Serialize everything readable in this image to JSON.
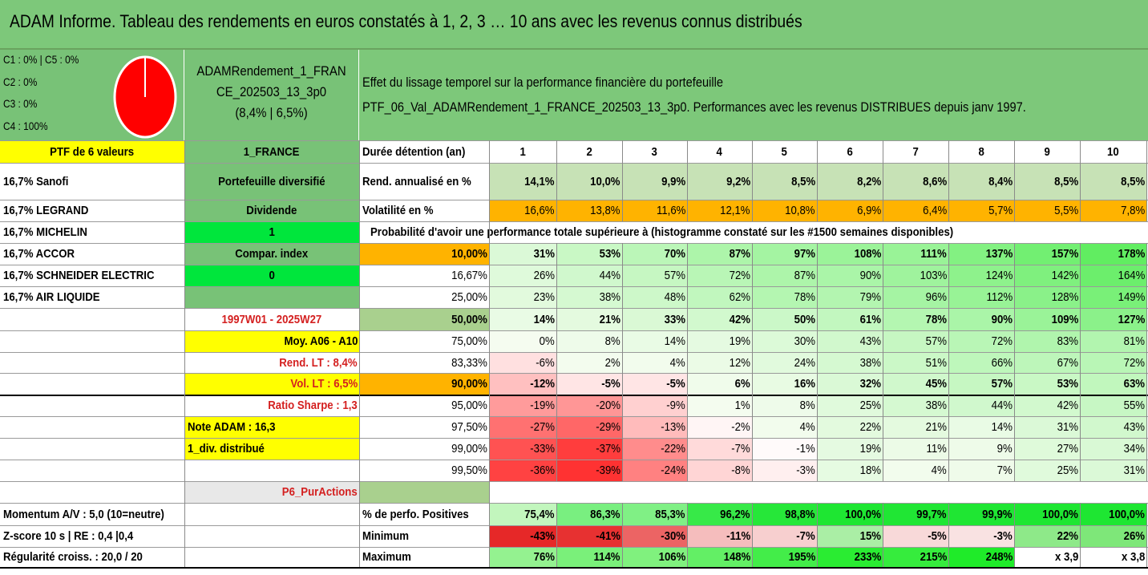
{
  "title": "ADAM Informe. Tableau des rendements en euros constatés à 1, 2, 3 … 10 ans avec les revenus connus distribués",
  "composition_lines": [
    "C1 : 0% | C5 : 0%",
    "C2 : 0%",
    "C3 : 0%",
    "C4 : 100%"
  ],
  "pie": {
    "color": "#ff0000",
    "share_c4": 100
  },
  "portfolio_name_lines": [
    "ADAMRendement_1_FRAN",
    "CE_202503_13_3p0",
    "(8,4% | 6,5%)"
  ],
  "description_lines": [
    "Effet du lissage temporel sur la performance financière du portefeuille",
    "PTF_06_Val_ADAMRendement_1_FRANCE_202503_13_3p0. Performances avec les revenus DISTRIBUES depuis janv 1997."
  ],
  "left_col": [
    "PTF de 6 valeurs",
    "16,7% Sanofi",
    "16,7% LEGRAND",
    "16,7% MICHELIN",
    "16,7% ACCOR",
    "16,7% SCHNEIDER ELECTRIC",
    "16,7% AIR LIQUIDE",
    "",
    "",
    "",
    "",
    "",
    "",
    "",
    "",
    "",
    "Momentum A/V : 5,0 (10=neutre)",
    "Z-score 10 s | RE : 0,4 |0,4",
    "Régularité croiss. : 20,0 / 20"
  ],
  "mid_col": [
    "1_FRANCE",
    "Portefeuille diversifié",
    "Dividende",
    "1",
    "Compar. index",
    "0",
    "",
    "1997W01 - 2025W27",
    "Moy. A06 - A10",
    "Rend. LT : 8,4%",
    "Vol. LT : 6,5%",
    "Ratio Sharpe : 1,3",
    "Note ADAM : 16,3",
    "1_div. distribué",
    "",
    "P6_PurActions"
  ],
  "header_label": "Durée détention (an)",
  "years": [
    "1",
    "2",
    "3",
    "4",
    "5",
    "6",
    "7",
    "8",
    "9",
    "10"
  ],
  "rend_label": "Rend. annualisé en %",
  "rend": [
    "14,1%",
    "10,0%",
    "9,9%",
    "9,2%",
    "8,5%",
    "8,2%",
    "8,6%",
    "8,4%",
    "8,5%",
    "8,5%"
  ],
  "vol_label": "Volatilité en %",
  "vol": [
    "16,6%",
    "13,8%",
    "11,6%",
    "12,1%",
    "10,8%",
    "6,9%",
    "6,4%",
    "5,7%",
    "5,5%",
    "7,8%"
  ],
  "prob_title": "Probabilité d'avoir une performance totale supérieure à (histogramme constaté sur les #1500 semaines disponibles)",
  "quantiles": [
    {
      "label": "10,00%",
      "values": [
        "31%",
        "53%",
        "70%",
        "87%",
        "97%",
        "108%",
        "111%",
        "137%",
        "157%",
        "178%"
      ]
    },
    {
      "label": "16,67%",
      "values": [
        "26%",
        "44%",
        "57%",
        "72%",
        "87%",
        "90%",
        "103%",
        "124%",
        "142%",
        "164%"
      ]
    },
    {
      "label": "25,00%",
      "values": [
        "23%",
        "38%",
        "48%",
        "62%",
        "78%",
        "79%",
        "96%",
        "112%",
        "128%",
        "149%"
      ]
    },
    {
      "label": "50,00%",
      "values": [
        "14%",
        "21%",
        "33%",
        "42%",
        "50%",
        "61%",
        "78%",
        "90%",
        "109%",
        "127%"
      ]
    },
    {
      "label": "75,00%",
      "values": [
        "0%",
        "8%",
        "14%",
        "19%",
        "30%",
        "43%",
        "57%",
        "72%",
        "83%",
        "81%"
      ]
    },
    {
      "label": "83,33%",
      "values": [
        "-6%",
        "2%",
        "4%",
        "12%",
        "24%",
        "38%",
        "51%",
        "66%",
        "67%",
        "72%"
      ]
    },
    {
      "label": "90,00%",
      "values": [
        "-12%",
        "-5%",
        "-5%",
        "6%",
        "16%",
        "32%",
        "45%",
        "57%",
        "53%",
        "63%"
      ]
    },
    {
      "label": "95,00%",
      "values": [
        "-19%",
        "-20%",
        "-9%",
        "1%",
        "8%",
        "25%",
        "38%",
        "44%",
        "42%",
        "55%"
      ]
    },
    {
      "label": "97,50%",
      "values": [
        "-27%",
        "-29%",
        "-13%",
        "-2%",
        "4%",
        "22%",
        "21%",
        "14%",
        "31%",
        "43%"
      ]
    },
    {
      "label": "99,00%",
      "values": [
        "-33%",
        "-37%",
        "-22%",
        "-7%",
        "-1%",
        "19%",
        "11%",
        "9%",
        "27%",
        "34%"
      ]
    },
    {
      "label": "99,50%",
      "values": [
        "-36%",
        "-39%",
        "-24%",
        "-8%",
        "-3%",
        "18%",
        "4%",
        "7%",
        "25%",
        "31%"
      ]
    }
  ],
  "pos_label": "% de perfo. Positives",
  "pos": [
    "75,4%",
    "86,3%",
    "85,3%",
    "96,2%",
    "98,8%",
    "100,0%",
    "99,7%",
    "99,9%",
    "100,0%",
    "100,0%"
  ],
  "min_label": "Minimum",
  "min": [
    "-43%",
    "-41%",
    "-30%",
    "-11%",
    "-7%",
    "15%",
    "-5%",
    "-3%",
    "22%",
    "26%"
  ],
  "max_label": "Maximum",
  "max": [
    "76%",
    "114%",
    "106%",
    "148%",
    "195%",
    "233%",
    "215%",
    "248%",
    "x 3,9",
    "x 3,8"
  ],
  "colors": {
    "header_green": "#7dc87a",
    "mid_green": "#78c277",
    "bright_green": "#00e63c",
    "yellow": "#ffff00",
    "orange": "#ffb300",
    "light_green_rend": "#c7e2b6"
  }
}
